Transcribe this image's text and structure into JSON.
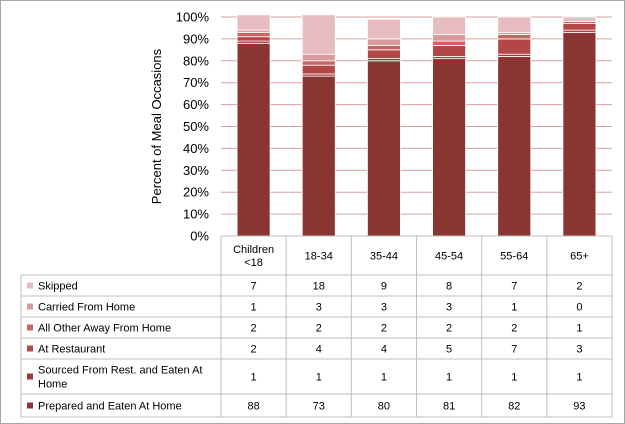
{
  "chart_data": {
    "type": "bar",
    "stacked": true,
    "ylabel": "Percent of Meal Occasions",
    "ylim": [
      0,
      100
    ],
    "yticks": [
      "0%",
      "10%",
      "20%",
      "30%",
      "40%",
      "50%",
      "60%",
      "70%",
      "80%",
      "90%",
      "100%"
    ],
    "categories": [
      [
        "Children",
        "<18"
      ],
      [
        "18-34"
      ],
      [
        "35-44"
      ],
      [
        "45-54"
      ],
      [
        "55-64"
      ],
      [
        "65+"
      ]
    ],
    "series": [
      {
        "name": "Prepared and Eaten At Home",
        "name_lines": [
          "Prepared and Eaten At Home"
        ],
        "color": "#8b3532",
        "values": [
          88,
          73,
          80,
          81,
          82,
          93
        ]
      },
      {
        "name": "Sourced From Rest. and Eaten At Home",
        "name_lines": [
          "Sourced From Rest. and Eaten At",
          "Home"
        ],
        "color": "#9e3a38",
        "values": [
          1,
          1,
          1,
          1,
          1,
          1
        ]
      },
      {
        "name": "At Restaurant",
        "name_lines": [
          "At Restaurant"
        ],
        "color": "#b34747",
        "values": [
          2,
          4,
          4,
          5,
          7,
          3
        ]
      },
      {
        "name": "All Other Away From Home",
        "name_lines": [
          "All Other Away From Home"
        ],
        "color": "#c76563",
        "values": [
          2,
          2,
          2,
          2,
          2,
          1
        ]
      },
      {
        "name": "Carried From Home",
        "name_lines": [
          "Carried From Home"
        ],
        "color": "#d89a9a",
        "values": [
          1,
          3,
          3,
          3,
          1,
          0
        ]
      },
      {
        "name": "Skipped",
        "name_lines": [
          "Skipped"
        ],
        "color": "#e6bcc0",
        "values": [
          7,
          18,
          9,
          8,
          7,
          2
        ]
      }
    ],
    "gridlines": true,
    "gridline_color": "#d9a0a0",
    "legend_placement": "data-table",
    "data_table": true
  }
}
